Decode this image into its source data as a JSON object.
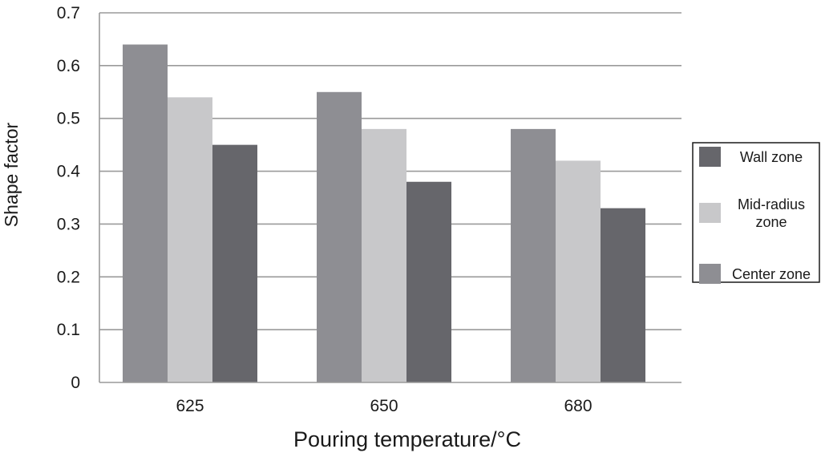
{
  "chart_data": {
    "type": "bar",
    "title": "",
    "xlabel": "Pouring temperature/°C",
    "ylabel": "Shape factor",
    "categories": [
      "625",
      "650",
      "680"
    ],
    "ylim": [
      0,
      0.7
    ],
    "yticks": [
      "0",
      "0.1",
      "0.2",
      "0.3",
      "0.4",
      "0.5",
      "0.6",
      "0.7"
    ],
    "grid": true,
    "legend_position": "right",
    "series": [
      {
        "name": "Center zone",
        "values": [
          0.64,
          0.55,
          0.48
        ],
        "color": "#8e8e93"
      },
      {
        "name": "Mid-radius zone",
        "values": [
          0.54,
          0.48,
          0.42
        ],
        "color": "#c8c8ca"
      },
      {
        "name": "Wall zone",
        "values": [
          0.45,
          0.38,
          0.33
        ],
        "color": "#66666b"
      }
    ],
    "legend": [
      {
        "series": "Wall zone",
        "lines": [
          "Wall zone"
        ],
        "color": "#66666b"
      },
      {
        "series": "Mid-radius zone",
        "lines": [
          "Mid-radius",
          "zone"
        ],
        "color": "#c8c8ca"
      },
      {
        "series": "Center zone",
        "lines": [
          "Center zone"
        ],
        "color": "#8e8e93"
      }
    ]
  }
}
